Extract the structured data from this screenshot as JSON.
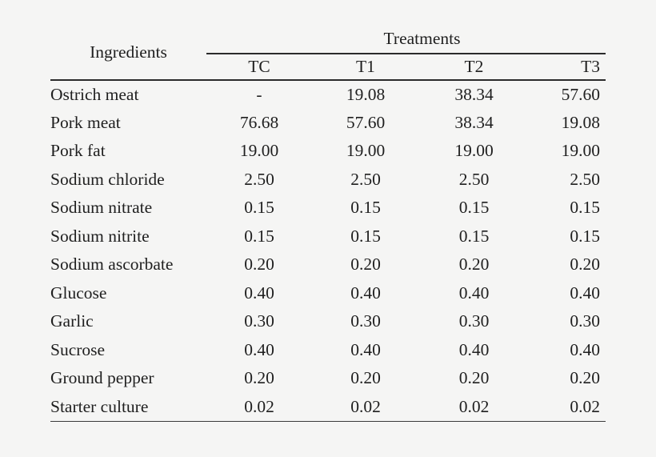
{
  "page": {
    "background": "#f5f5f4",
    "text_color": "#1f1f1f",
    "rule_color": "#2b2b2b"
  },
  "table": {
    "ingredients_header": "Ingredients",
    "treatments_header": "Treatments",
    "columns": [
      "TC",
      "T1",
      "T2",
      "T3"
    ],
    "rows": [
      {
        "ingredient": "Ostrich meat",
        "values": [
          "-",
          "19.08",
          "38.34",
          "57.60"
        ]
      },
      {
        "ingredient": "Pork meat",
        "values": [
          "76.68",
          "57.60",
          "38.34",
          "19.08"
        ]
      },
      {
        "ingredient": "Pork fat",
        "values": [
          "19.00",
          "19.00",
          "19.00",
          "19.00"
        ]
      },
      {
        "ingredient": "Sodium chloride",
        "values": [
          "2.50",
          "2.50",
          "2.50",
          "2.50"
        ]
      },
      {
        "ingredient": "Sodium nitrate",
        "values": [
          "0.15",
          "0.15",
          "0.15",
          "0.15"
        ]
      },
      {
        "ingredient": "Sodium nitrite",
        "values": [
          "0.15",
          "0.15",
          "0.15",
          "0.15"
        ]
      },
      {
        "ingredient": "Sodium ascorbate",
        "values": [
          "0.20",
          "0.20",
          "0.20",
          "0.20"
        ]
      },
      {
        "ingredient": "Glucose",
        "values": [
          "0.40",
          "0.40",
          "0.40",
          "0.40"
        ]
      },
      {
        "ingredient": "Garlic",
        "values": [
          "0.30",
          "0.30",
          "0.30",
          "0.30"
        ]
      },
      {
        "ingredient": "Sucrose",
        "values": [
          "0.40",
          "0.40",
          "0.40",
          "0.40"
        ]
      },
      {
        "ingredient": "Ground pepper",
        "values": [
          "0.20",
          "0.20",
          "0.20",
          "0.20"
        ]
      },
      {
        "ingredient": "Starter culture",
        "values": [
          "0.02",
          "0.02",
          "0.02",
          "0.02"
        ]
      }
    ]
  }
}
